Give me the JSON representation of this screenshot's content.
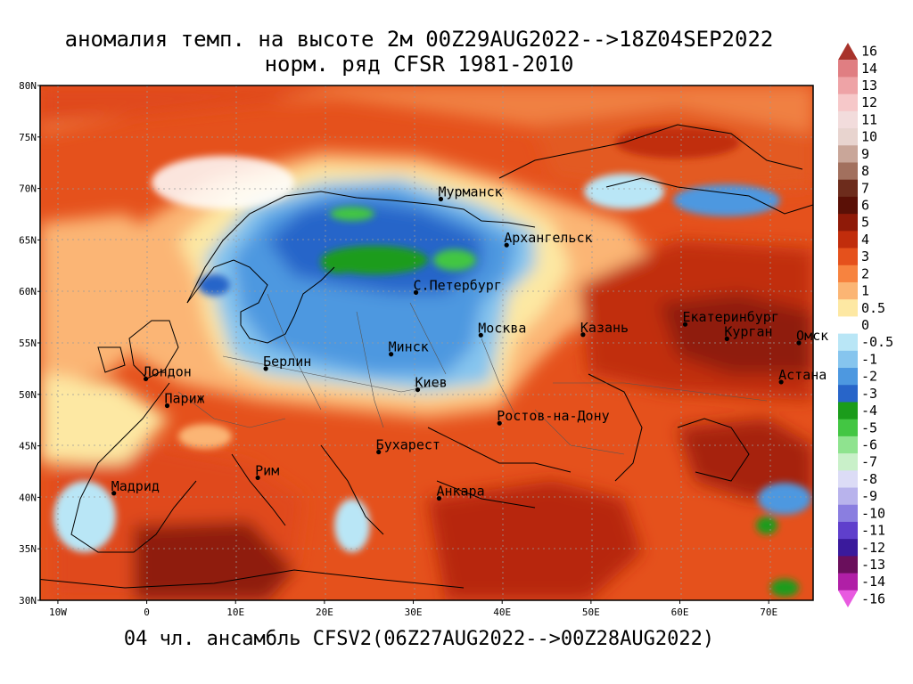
{
  "title": {
    "line1": "аномалия темп. на высоте 2м 00Z29AUG2022-->18Z04SEP2022",
    "line2": "норм. ряд CFSR 1981-2010"
  },
  "footer": "04 чл. ансамбль CFSV2(06Z27AUG2022-->00Z28AUG2022)",
  "map": {
    "lon_range": [
      -12,
      75
    ],
    "lat_range": [
      30,
      80
    ],
    "lat_ticks": [
      "80N",
      "75N",
      "70N",
      "65N",
      "60N",
      "55N",
      "50N",
      "45N",
      "40N",
      "35N",
      "30N"
    ],
    "lon_ticks": [
      "10W",
      "0",
      "10E",
      "20E",
      "30E",
      "40E",
      "50E",
      "60E",
      "70E"
    ],
    "cities": [
      {
        "name": "Мурманск",
        "lon": 33.1,
        "lat": 68.97
      },
      {
        "name": "Архангельск",
        "lon": 40.5,
        "lat": 64.5
      },
      {
        "name": "С.Петербург",
        "lon": 30.3,
        "lat": 59.9
      },
      {
        "name": "Москва",
        "lon": 37.6,
        "lat": 55.75
      },
      {
        "name": "Казань",
        "lon": 49.1,
        "lat": 55.8
      },
      {
        "name": "Екатеринбург",
        "lon": 60.6,
        "lat": 56.8
      },
      {
        "name": "Курган",
        "lon": 65.3,
        "lat": 55.4
      },
      {
        "name": "Омск",
        "lon": 73.4,
        "lat": 55.0
      },
      {
        "name": "Астана",
        "lon": 71.4,
        "lat": 51.2
      },
      {
        "name": "Минск",
        "lon": 27.5,
        "lat": 53.9
      },
      {
        "name": "Берлин",
        "lon": 13.4,
        "lat": 52.5
      },
      {
        "name": "Лондон",
        "lon": -0.1,
        "lat": 51.5
      },
      {
        "name": "Париж",
        "lon": 2.3,
        "lat": 48.9
      },
      {
        "name": "Киев",
        "lon": 30.5,
        "lat": 50.45
      },
      {
        "name": "Ростов-на-Дону",
        "lon": 39.7,
        "lat": 47.2
      },
      {
        "name": "Бухарест",
        "lon": 26.1,
        "lat": 44.4
      },
      {
        "name": "Рим",
        "lon": 12.5,
        "lat": 41.9
      },
      {
        "name": "Мадрид",
        "lon": -3.7,
        "lat": 40.4
      },
      {
        "name": "Анкара",
        "lon": 32.9,
        "lat": 39.9
      }
    ]
  },
  "legend": {
    "levels": [
      "16",
      "14",
      "13",
      "12",
      "11",
      "10",
      "9",
      "8",
      "7",
      "6",
      "5",
      "4",
      "3",
      "2",
      "1",
      "0.5",
      "0",
      "-0.5",
      "-1",
      "-2",
      "-3",
      "-4",
      "-5",
      "-6",
      "-7",
      "-8",
      "-9",
      "-10",
      "-11",
      "-12",
      "-13",
      "-14",
      "-16"
    ],
    "colors": [
      "#a8332b",
      "#e07e82",
      "#eea3a6",
      "#f6c8c9",
      "#f2dcdc",
      "#e8d4cf",
      "#c9a699",
      "#a2705e",
      "#6d2c1c",
      "#5a1006",
      "#8f1a08",
      "#c12d0c",
      "#e5511c",
      "#f7833f",
      "#fbb574",
      "#fde8a3",
      "#ffffff",
      "#b9e6f6",
      "#86c5ee",
      "#4d98e0",
      "#2865c9",
      "#1b9c1b",
      "#43c643",
      "#8fe38f",
      "#c9f0c9",
      "#dcdcf6",
      "#b8b3ec",
      "#8a7ee0",
      "#5f3fcc",
      "#3a1a9c",
      "#6a0f5c",
      "#b01fa6",
      "#e85ae0"
    ]
  }
}
